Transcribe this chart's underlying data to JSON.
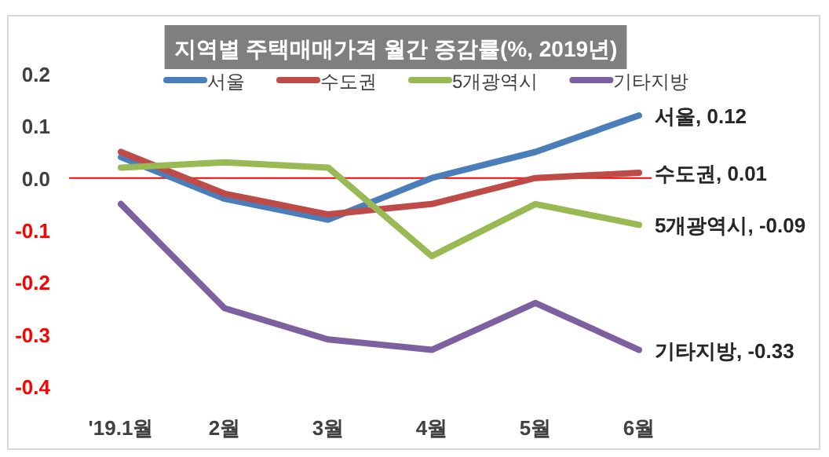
{
  "chart_data": {
    "type": "line",
    "title": "지역별 주택매매가격 월간 증감률(%, 2019년)",
    "categories": [
      "'19.1월",
      "2월",
      "3월",
      "4월",
      "5월",
      "6월"
    ],
    "series": [
      {
        "name": "서울",
        "color": "#4a7ebb",
        "values": [
          0.04,
          -0.04,
          -0.08,
          0.0,
          0.05,
          0.12
        ]
      },
      {
        "name": "수도권",
        "color": "#be4b48",
        "values": [
          0.05,
          -0.03,
          -0.07,
          -0.05,
          0.0,
          0.01
        ]
      },
      {
        "name": "5개광역시",
        "color": "#98b954",
        "values": [
          0.02,
          0.03,
          0.02,
          -0.15,
          -0.05,
          -0.09
        ]
      },
      {
        "name": "기타지방",
        "color": "#7d60a0",
        "values": [
          -0.05,
          -0.25,
          -0.31,
          -0.33,
          -0.24,
          -0.33
        ]
      }
    ],
    "ylim": [
      -0.4,
      0.2
    ],
    "yticks": [
      {
        "value": 0.2,
        "label": "0.2"
      },
      {
        "value": 0.1,
        "label": "0.1"
      },
      {
        "value": 0,
        "label": "0.0"
      },
      {
        "value": -0.1,
        "label": "-0.1"
      },
      {
        "value": -0.2,
        "label": "-0.2"
      },
      {
        "value": -0.3,
        "label": "-0.3"
      },
      {
        "value": -0.4,
        "label": "-0.4"
      }
    ],
    "ref_lines": [
      {
        "axis": "y",
        "value": 0,
        "color": "#ff0000"
      }
    ],
    "annotations": [
      {
        "text": "서울, 0.12",
        "x": "6월",
        "y": 0.12
      },
      {
        "text": "수도권, 0.01",
        "x": "6월",
        "y": 0.01
      },
      {
        "text": "5개광역시, -0.09",
        "x": "6월",
        "y": -0.09
      },
      {
        "text": "기타지방, -0.33",
        "x": "6월",
        "y": -0.33
      }
    ],
    "legend": "top",
    "grid": false,
    "marker": "none",
    "line_style": "solid"
  }
}
